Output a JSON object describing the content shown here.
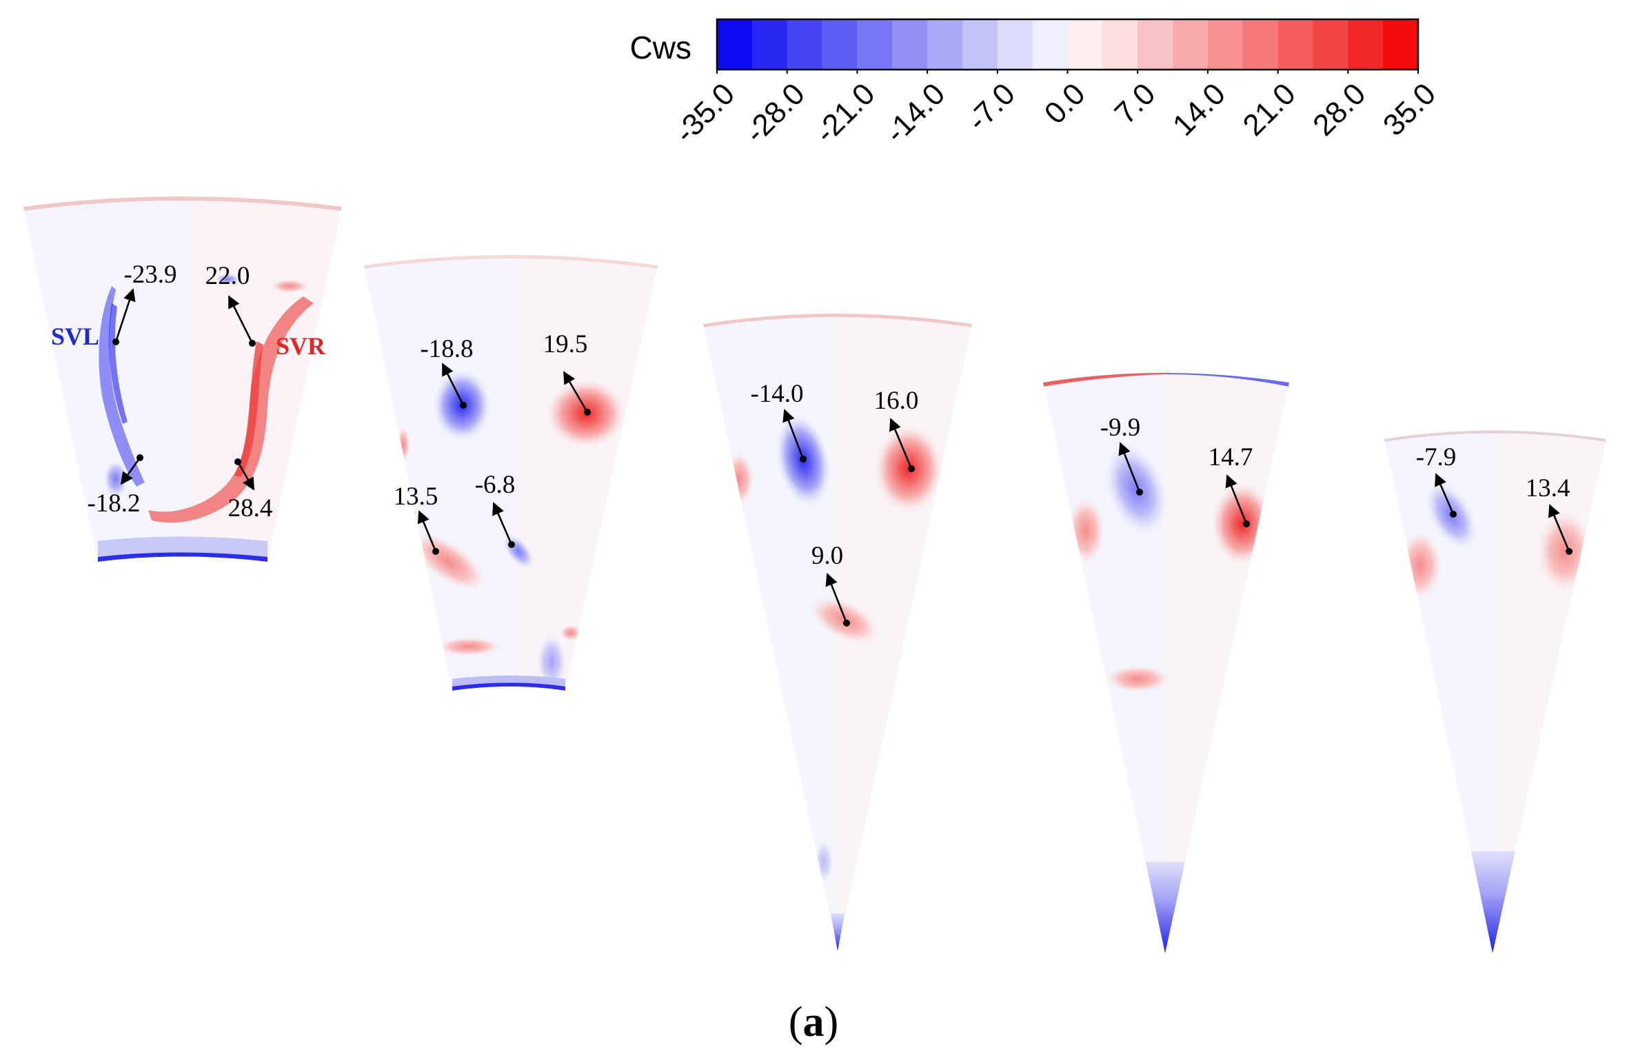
{
  "colorbar": {
    "title": "Cws",
    "min": -35.0,
    "max": 35.0,
    "tick_labels": [
      "-35.0",
      "-28.0",
      "-21.0",
      "-14.0",
      "-7.0",
      "0.0",
      "7.0",
      "14.0",
      "21.0",
      "28.0",
      "35.0"
    ],
    "color_steps": [
      "#0b0bf2",
      "#2828f2",
      "#4545f3",
      "#5e5ef5",
      "#7878f6",
      "#9090f7",
      "#a9a9f9",
      "#c3c3fa",
      "#dcdcfc",
      "#eeeefd",
      "#fdeeee",
      "#fcdcdc",
      "#fac3c3",
      "#f9a9a9",
      "#f79090",
      "#f67878",
      "#f55e5e",
      "#f34545",
      "#f22828",
      "#f20b0b"
    ]
  },
  "colors": {
    "negative": "#2a2af0",
    "positive": "#ef2a2a",
    "background_field": "#f4f5fe",
    "svl_text": "#1e2bc9",
    "svr_text": "#e02626"
  },
  "sections": [
    {
      "id": 1,
      "vortex_labels": [
        "SVL",
        "SVR"
      ],
      "annotations": [
        {
          "value": "-23.9",
          "sign": "negative"
        },
        {
          "value": "22.0",
          "sign": "positive"
        },
        {
          "value": "-18.2",
          "sign": "negative"
        },
        {
          "value": "28.4",
          "sign": "positive"
        }
      ]
    },
    {
      "id": 2,
      "annotations": [
        {
          "value": "-18.8",
          "sign": "negative"
        },
        {
          "value": "19.5",
          "sign": "positive"
        },
        {
          "value": "13.5",
          "sign": "positive"
        },
        {
          "value": "-6.8",
          "sign": "negative"
        }
      ]
    },
    {
      "id": 3,
      "annotations": [
        {
          "value": "-14.0",
          "sign": "negative"
        },
        {
          "value": "16.0",
          "sign": "positive"
        },
        {
          "value": "9.0",
          "sign": "positive"
        }
      ]
    },
    {
      "id": 4,
      "annotations": [
        {
          "value": "-9.9",
          "sign": "negative"
        },
        {
          "value": "14.7",
          "sign": "positive"
        }
      ]
    },
    {
      "id": 5,
      "annotations": [
        {
          "value": "-7.9",
          "sign": "negative"
        },
        {
          "value": "13.4",
          "sign": "positive"
        }
      ]
    }
  ],
  "caption": {
    "open": "(",
    "letter": "a",
    "close": ")"
  }
}
